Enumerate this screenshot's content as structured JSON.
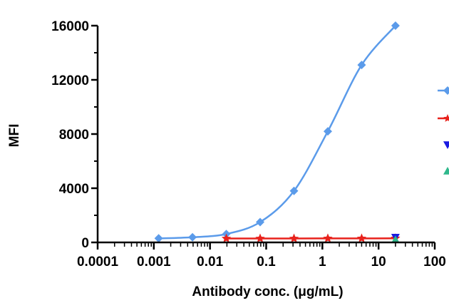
{
  "chart_data": {
    "type": "line",
    "xlabel": "Antibody conc. (μg/mL)",
    "ylabel": "MFI",
    "x_scale": "log",
    "xlim": [
      0.0001,
      100
    ],
    "ylim": [
      0,
      16000
    ],
    "x_ticks": [
      {
        "value": 0.0001,
        "label": "0.0001"
      },
      {
        "value": 0.001,
        "label": "0.001"
      },
      {
        "value": 0.01,
        "label": "0.01"
      },
      {
        "value": 0.1,
        "label": "0.1"
      },
      {
        "value": 1,
        "label": "1"
      },
      {
        "value": 10,
        "label": "10"
      },
      {
        "value": 100,
        "label": "100"
      }
    ],
    "y_ticks": [
      {
        "value": 0,
        "label": "0"
      },
      {
        "value": 4000,
        "label": "4000"
      },
      {
        "value": 8000,
        "label": "8000"
      },
      {
        "value": 12000,
        "label": "12000"
      },
      {
        "value": 16000,
        "label": "16000"
      }
    ],
    "grid": false,
    "legend_position": "right (cut off)",
    "series": [
      {
        "color": "#5b9bea",
        "marker": "diamond",
        "x": [
          0.00122,
          0.00488,
          0.0195,
          0.078,
          0.3125,
          1.25,
          5,
          20
        ],
        "y": [
          300,
          380,
          620,
          1500,
          3800,
          8200,
          13100,
          16000
        ]
      },
      {
        "color": "#e8221c",
        "marker": "star",
        "x": [
          0.0195,
          0.078,
          0.3125,
          1.25,
          5,
          20
        ],
        "y": [
          290,
          290,
          290,
          295,
          295,
          300
        ]
      },
      {
        "color": "#1a1ae0",
        "marker": "triangle-down",
        "x": [
          20
        ],
        "y": [
          380
        ]
      },
      {
        "color": "#2fb88c",
        "marker": "triangle-up",
        "x": [
          20
        ],
        "y": [
          200
        ]
      }
    ]
  }
}
